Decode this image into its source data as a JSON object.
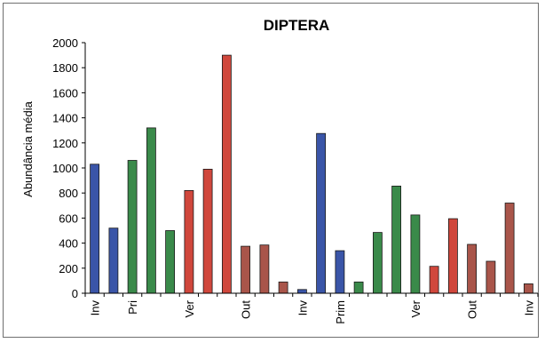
{
  "chart_data": {
    "type": "bar",
    "title": "DIPTERA",
    "xlabel": "",
    "ylabel": "Abundância média",
    "ylim": [
      0,
      2000
    ],
    "yticks": [
      0,
      200,
      400,
      600,
      800,
      1000,
      1200,
      1400,
      1600,
      1800,
      2000
    ],
    "grid": false,
    "legend": "none",
    "categories": [
      "Inv",
      "",
      "Pri",
      "",
      "",
      "Ver",
      "",
      "",
      "Out",
      "",
      "",
      "Inv",
      "",
      "Prim",
      "",
      "",
      "",
      "Ver",
      "",
      "",
      "Out",
      "",
      "",
      "Inv"
    ],
    "values": [
      1030,
      520,
      1060,
      1320,
      500,
      820,
      990,
      1900,
      375,
      385,
      90,
      30,
      1275,
      340,
      90,
      485,
      855,
      625,
      215,
      595,
      390,
      255,
      720,
      75
    ],
    "colors": [
      "#3a55a8",
      "#3a55a8",
      "#3a8a4a",
      "#3a8a4a",
      "#3a8a4a",
      "#d0473c",
      "#d0473c",
      "#d0473c",
      "#a9554a",
      "#a9554a",
      "#a9554a",
      "#3a55a8",
      "#3a55a8",
      "#3a55a8",
      "#3a8a4a",
      "#3a8a4a",
      "#3a8a4a",
      "#3a8a4a",
      "#d0473c",
      "#d0473c",
      "#a9554a",
      "#a9554a",
      "#a9554a",
      "#a9554a"
    ]
  }
}
